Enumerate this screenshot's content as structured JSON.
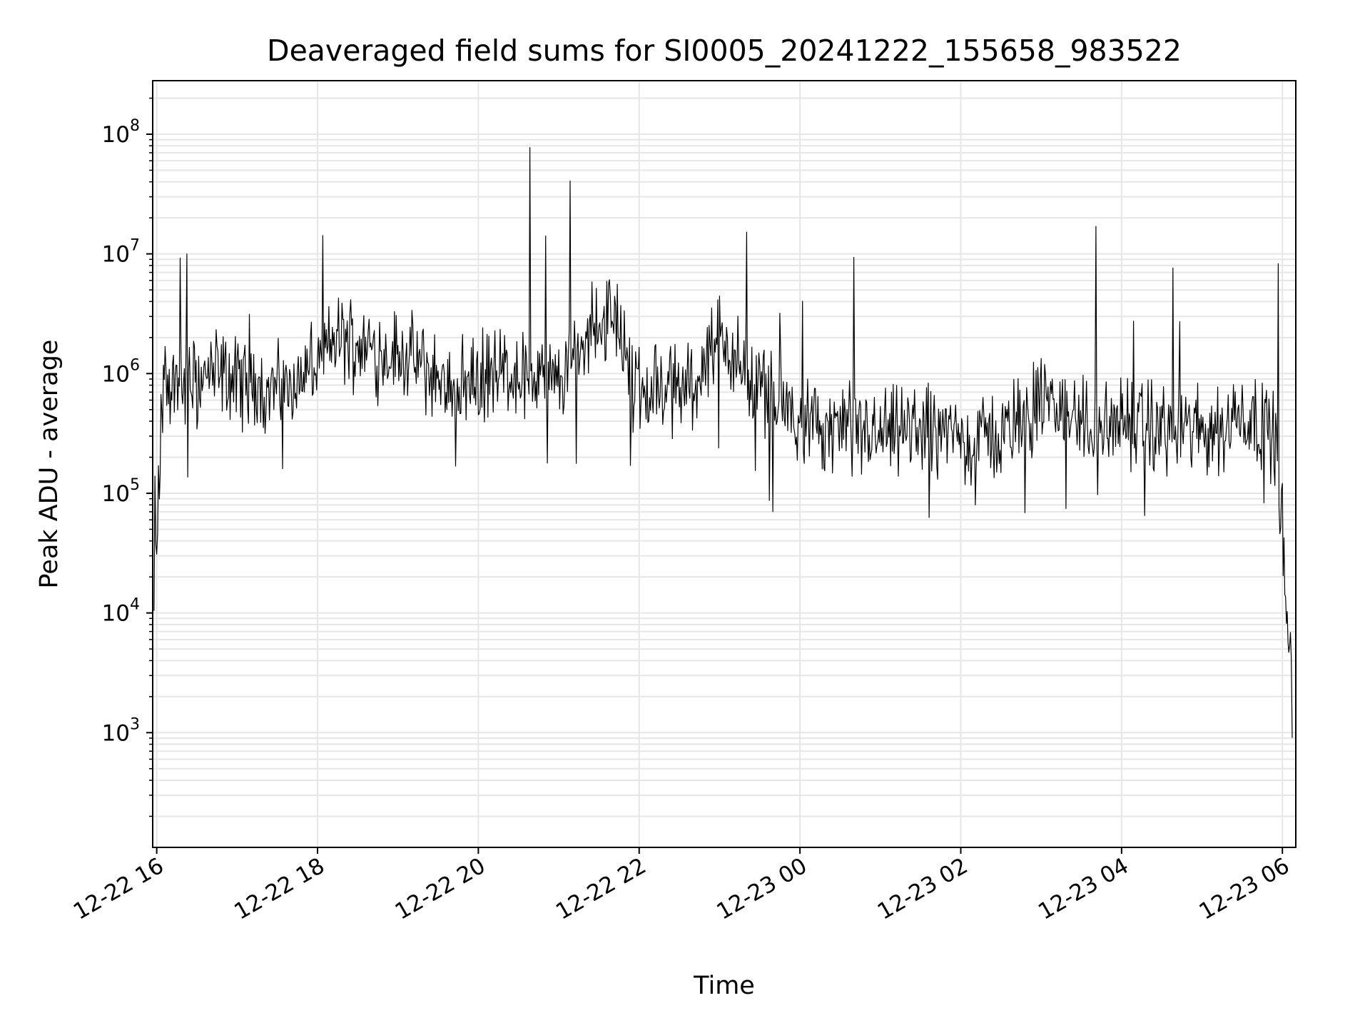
{
  "chart_data": {
    "type": "line",
    "title": "Deaveraged field sums for SI0005_20241222_155658_983522",
    "xlabel": "Time",
    "ylabel": "Peak ADU - average",
    "yscale": "log",
    "xlim": [
      "2024-12-22 15:57",
      "2024-12-23 06:10"
    ],
    "ylim": [
      110,
      280000000
    ],
    "grid": true,
    "line_color": "#000000",
    "grid_color": "#e6e6e6",
    "x_ticks": [
      {
        "t": "2024-12-22 16:00",
        "label": "12-22 16"
      },
      {
        "t": "2024-12-22 18:00",
        "label": "12-22 18"
      },
      {
        "t": "2024-12-22 20:00",
        "label": "12-22 20"
      },
      {
        "t": "2024-12-22 22:00",
        "label": "12-22 22"
      },
      {
        "t": "2024-12-23 00:00",
        "label": "12-23 00"
      },
      {
        "t": "2024-12-23 02:00",
        "label": "12-23 02"
      },
      {
        "t": "2024-12-23 04:00",
        "label": "12-23 04"
      },
      {
        "t": "2024-12-23 06:00",
        "label": "12-23 06"
      }
    ],
    "y_ticks": [
      {
        "value": 1000,
        "base": "10",
        "exp": "3"
      },
      {
        "value": 10000,
        "base": "10",
        "exp": "4"
      },
      {
        "value": 100000,
        "base": "10",
        "exp": "5"
      },
      {
        "value": 1000000,
        "base": "10",
        "exp": "6"
      },
      {
        "value": 10000000,
        "base": "10",
        "exp": "7"
      },
      {
        "value": 100000000,
        "base": "10",
        "exp": "8"
      }
    ],
    "series": [
      {
        "x": [
          "2024-12-22 15:58",
          "2024-12-22 16:00",
          "2024-12-22 16:02",
          "2024-12-22 16:05",
          "2024-12-22 16:10",
          "2024-12-22 16:20",
          "2024-12-22 16:30",
          "2024-12-22 16:45",
          "2024-12-22 17:00",
          "2024-12-22 17:15",
          "2024-12-22 17:30",
          "2024-12-22 17:45",
          "2024-12-22 18:00",
          "2024-12-22 18:15",
          "2024-12-22 18:30",
          "2024-12-22 18:45",
          "2024-12-22 19:00",
          "2024-12-22 19:15",
          "2024-12-22 19:30",
          "2024-12-22 19:45",
          "2024-12-22 20:00",
          "2024-12-22 20:15",
          "2024-12-22 20:30",
          "2024-12-22 20:45",
          "2024-12-22 21:00",
          "2024-12-22 21:15",
          "2024-12-22 21:30",
          "2024-12-22 21:45",
          "2024-12-22 22:00",
          "2024-12-22 22:15",
          "2024-12-22 22:30",
          "2024-12-22 22:45",
          "2024-12-22 23:00",
          "2024-12-22 23:15",
          "2024-12-22 23:30",
          "2024-12-22 23:45",
          "2024-12-23 00:00",
          "2024-12-23 00:30",
          "2024-12-23 01:00",
          "2024-12-23 01:30",
          "2024-12-23 02:00",
          "2024-12-23 02:30",
          "2024-12-23 03:00",
          "2024-12-23 03:30",
          "2024-12-23 04:00",
          "2024-12-23 04:30",
          "2024-12-23 05:00",
          "2024-12-23 05:15",
          "2024-12-23 05:30",
          "2024-12-23 05:45",
          "2024-12-23 05:55",
          "2024-12-23 06:00",
          "2024-12-23 06:03",
          "2024-12-23 06:06",
          "2024-12-23 06:08"
        ],
        "y": [
          12000,
          30000,
          150000,
          800000,
          850000,
          800000,
          900000,
          1000000,
          850000,
          800000,
          750000,
          900000,
          1200000,
          2000000,
          1800000,
          1500000,
          1500000,
          1200000,
          900000,
          800000,
          900000,
          1100000,
          1000000,
          900000,
          800000,
          1500000,
          3000000,
          2500000,
          700000,
          800000,
          700000,
          1000000,
          2000000,
          1200000,
          700000,
          600000,
          350000,
          350000,
          300000,
          350000,
          300000,
          300000,
          600000,
          400000,
          350000,
          350000,
          350000,
          350000,
          500000,
          350000,
          300000,
          60000,
          8000,
          4000,
          2500
        ]
      }
    ],
    "annotations": []
  }
}
